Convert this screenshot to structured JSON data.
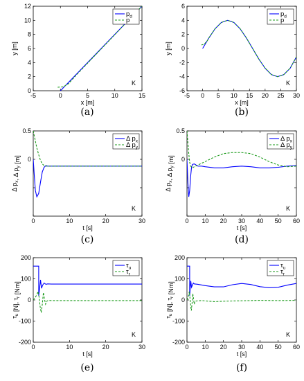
{
  "chart_data": [
    {
      "type": "line",
      "caption": "(a)",
      "xlabel": "x [m]",
      "ylabel": "y [m]",
      "xlim": [
        -5,
        15
      ],
      "ylim": [
        0,
        12
      ],
      "xticks": [
        -5,
        0,
        5,
        10,
        15
      ],
      "yticks": [
        0,
        2,
        4,
        6,
        8,
        10,
        12
      ],
      "annotation": "K",
      "legend": [
        {
          "main": "p",
          "sub": "d",
          "style": "solid",
          "color": "#0000ff"
        },
        {
          "main": "p",
          "sub": "",
          "style": "dashed",
          "color": "#1a9a1a"
        }
      ],
      "series": [
        {
          "name": "p_d",
          "style": "solid",
          "color": "#0000ff",
          "x": [
            0,
            15
          ],
          "y": [
            0,
            12
          ]
        },
        {
          "name": "p",
          "style": "dashed",
          "color": "#1a9a1a",
          "x": [
            -0.5,
            0.5,
            1.5,
            3,
            15
          ],
          "y": [
            0.5,
            0.55,
            1.0,
            2.3,
            12
          ]
        }
      ]
    },
    {
      "type": "line",
      "caption": "(b)",
      "xlabel": "x [m]",
      "ylabel": "y [m]",
      "xlim": [
        -5,
        30
      ],
      "ylim": [
        -6,
        6
      ],
      "xticks": [
        -5,
        0,
        5,
        10,
        15,
        20,
        25,
        30
      ],
      "yticks": [
        -6,
        -4,
        -2,
        0,
        2,
        4,
        6
      ],
      "annotation": "K",
      "legend": [
        {
          "main": "p",
          "sub": "d",
          "style": "solid",
          "color": "#0000ff"
        },
        {
          "main": "p",
          "sub": "",
          "style": "dashed",
          "color": "#1a9a1a"
        }
      ],
      "series": [
        {
          "name": "p_d",
          "style": "solid",
          "color": "#0000ff",
          "x": [
            0,
            2,
            4,
            6,
            8,
            10,
            12,
            14,
            16,
            18,
            20,
            22,
            24,
            26,
            28,
            30
          ],
          "y": [
            0,
            1.5,
            2.8,
            3.7,
            4.0,
            3.7,
            2.8,
            1.5,
            0,
            -1.5,
            -2.8,
            -3.7,
            -4.0,
            -3.7,
            -2.8,
            -1.2
          ]
        },
        {
          "name": "p",
          "style": "dashed",
          "color": "#1a9a1a",
          "x": [
            -0.4,
            0.5,
            1.5,
            2,
            4,
            6,
            8,
            10,
            12,
            14,
            16,
            18,
            20,
            22,
            24,
            26,
            28,
            30
          ],
          "y": [
            0.5,
            0.6,
            1.1,
            1.5,
            2.8,
            3.7,
            4.0,
            3.7,
            2.8,
            1.5,
            0,
            -1.5,
            -2.8,
            -3.7,
            -4.0,
            -3.7,
            -2.8,
            -1.2
          ]
        }
      ]
    },
    {
      "type": "line",
      "caption": "(c)",
      "xlabel": "t [s]",
      "ylabel": "Δ p_x, Δ p_y [m]",
      "xlim": [
        0,
        30
      ],
      "ylim": [
        -1,
        0.5
      ],
      "xticks": [
        0,
        10,
        20,
        30
      ],
      "yticks": [
        -1,
        -0.5,
        0,
        0.5
      ],
      "yticklabels": [
        "",
        "",
        "0",
        "0.5"
      ],
      "annotation": "K",
      "legend": [
        {
          "main": "Δ p",
          "sub": "x",
          "style": "solid",
          "color": "#0000ff"
        },
        {
          "main": "Δ p",
          "sub": "y",
          "style": "dashed",
          "color": "#1a9a1a"
        }
      ],
      "series": [
        {
          "name": "Δp_x",
          "style": "solid",
          "color": "#0000ff",
          "x": [
            0,
            0.3,
            0.6,
            1.0,
            1.5,
            2.0,
            2.5,
            3.0,
            3.5,
            4.0,
            5.0,
            6.0,
            30
          ],
          "y": [
            0,
            -0.3,
            -0.55,
            -0.66,
            -0.6,
            -0.4,
            -0.22,
            -0.14,
            -0.11,
            -0.12,
            -0.12,
            -0.12,
            -0.12
          ]
        },
        {
          "name": "Δp_y",
          "style": "dashed",
          "color": "#1a9a1a",
          "x": [
            0,
            0.5,
            1.0,
            1.5,
            2.0,
            2.5,
            3.0,
            3.5,
            4.0,
            5.0,
            30
          ],
          "y": [
            0.5,
            0.35,
            0.2,
            0.08,
            -0.02,
            -0.08,
            -0.11,
            -0.12,
            -0.12,
            -0.12,
            -0.12
          ]
        }
      ]
    },
    {
      "type": "line",
      "caption": "(d)",
      "xlabel": "t [s]",
      "ylabel": "Δ p_x, Δ p_y [m]",
      "xlim": [
        0,
        60
      ],
      "ylim": [
        -1,
        0.5
      ],
      "xticks": [
        0,
        10,
        20,
        30,
        40,
        50,
        60
      ],
      "yticks": [
        -1,
        -0.5,
        0,
        0.5
      ],
      "yticklabels": [
        "",
        "",
        "0",
        "0.5"
      ],
      "annotation": "K",
      "legend": [
        {
          "main": "Δ p",
          "sub": "x",
          "style": "solid",
          "color": "#0000ff"
        },
        {
          "main": "Δ p",
          "sub": "y",
          "style": "dashed",
          "color": "#1a9a1a"
        }
      ],
      "series": [
        {
          "name": "Δp_x",
          "style": "solid",
          "color": "#0000ff",
          "x": [
            0,
            0.5,
            1.0,
            1.5,
            2.0,
            2.5,
            3.0,
            4.0,
            5.0,
            6.0,
            8,
            10,
            15,
            20,
            25,
            30,
            35,
            40,
            45,
            50,
            55,
            60
          ],
          "y": [
            0,
            -0.4,
            -0.66,
            -0.55,
            -0.3,
            -0.14,
            -0.09,
            -0.08,
            -0.1,
            -0.12,
            -0.12,
            -0.13,
            -0.15,
            -0.15,
            -0.13,
            -0.12,
            -0.13,
            -0.15,
            -0.15,
            -0.14,
            -0.12,
            -0.11
          ]
        },
        {
          "name": "Δp_y",
          "style": "dashed",
          "color": "#1a9a1a",
          "x": [
            0,
            0.5,
            1.0,
            1.5,
            2.0,
            3.0,
            4.0,
            6,
            10,
            15,
            20,
            25,
            30,
            35,
            40,
            45,
            50,
            55,
            60
          ],
          "y": [
            0.5,
            0.3,
            0.1,
            -0.05,
            -0.12,
            -0.15,
            -0.13,
            -0.1,
            -0.04,
            0.04,
            0.1,
            0.12,
            0.12,
            0.1,
            0.04,
            -0.04,
            -0.1,
            -0.13,
            -0.12
          ]
        }
      ]
    },
    {
      "type": "line",
      "caption": "(e)",
      "xlabel": "t [s]",
      "ylabel": "τ_u [N], τ_r [Nm]",
      "xlim": [
        0,
        30
      ],
      "ylim": [
        -200,
        200
      ],
      "xticks": [
        0,
        10,
        20,
        30
      ],
      "yticks": [
        -200,
        -100,
        0,
        100,
        200
      ],
      "annotation": "K",
      "legend": [
        {
          "main": "τ",
          "sub": "u",
          "style": "solid",
          "color": "#0000ff"
        },
        {
          "main": "τ",
          "sub": "r",
          "style": "dashed",
          "color": "#1a9a1a"
        }
      ],
      "series": [
        {
          "name": "τ_u",
          "style": "solid",
          "color": "#0000ff",
          "x": [
            0,
            1.5,
            1.5,
            1.8,
            2.0,
            2.3,
            2.6,
            3.0,
            3.5,
            4.0,
            5.0,
            30
          ],
          "y": [
            160,
            160,
            20,
            60,
            95,
            55,
            70,
            80,
            74,
            76,
            75,
            75
          ]
        },
        {
          "name": "τ_r",
          "style": "dashed",
          "color": "#1a9a1a",
          "x": [
            0,
            0.5,
            1.0,
            1.3,
            1.6,
            1.9,
            2.2,
            2.5,
            2.8,
            3.1,
            3.4,
            3.8,
            4.2,
            5.0,
            30
          ],
          "y": [
            0,
            10,
            25,
            40,
            15,
            -30,
            -60,
            -20,
            35,
            5,
            -20,
            -5,
            -2,
            -3,
            -3
          ]
        }
      ]
    },
    {
      "type": "line",
      "caption": "(f)",
      "xlabel": "t [s]",
      "ylabel": "τ_u [N], τ_r [Nm]",
      "xlim": [
        0,
        60
      ],
      "ylim": [
        -200,
        200
      ],
      "xticks": [
        0,
        10,
        20,
        30,
        40,
        50,
        60
      ],
      "yticks": [
        -200,
        -100,
        0,
        100,
        200
      ],
      "annotation": "K",
      "legend": [
        {
          "main": "τ",
          "sub": "u",
          "style": "solid",
          "color": "#0000ff"
        },
        {
          "main": "τ",
          "sub": "r",
          "style": "dashed",
          "color": "#1a9a1a"
        }
      ],
      "series": [
        {
          "name": "τ_u",
          "style": "solid",
          "color": "#0000ff",
          "x": [
            0,
            1.5,
            1.5,
            1.8,
            2.1,
            2.5,
            3.0,
            3.5,
            4,
            6,
            10,
            15,
            20,
            25,
            30,
            35,
            40,
            45,
            50,
            55,
            60
          ],
          "y": [
            160,
            160,
            20,
            55,
            90,
            60,
            70,
            80,
            76,
            74,
            68,
            62,
            62,
            72,
            78,
            73,
            63,
            58,
            60,
            70,
            78
          ]
        },
        {
          "name": "τ_r",
          "style": "dashed",
          "color": "#1a9a1a",
          "x": [
            0,
            0.5,
            1.0,
            1.3,
            1.6,
            2.0,
            2.4,
            2.8,
            3.2,
            3.6,
            4.0,
            4.5,
            5,
            8,
            15,
            20,
            30,
            40,
            50,
            60
          ],
          "y": [
            0,
            10,
            25,
            40,
            15,
            -25,
            -50,
            -15,
            30,
            5,
            -20,
            -8,
            -5,
            -3,
            -8,
            -6,
            -4,
            -2,
            -3,
            -2
          ]
        }
      ]
    }
  ]
}
